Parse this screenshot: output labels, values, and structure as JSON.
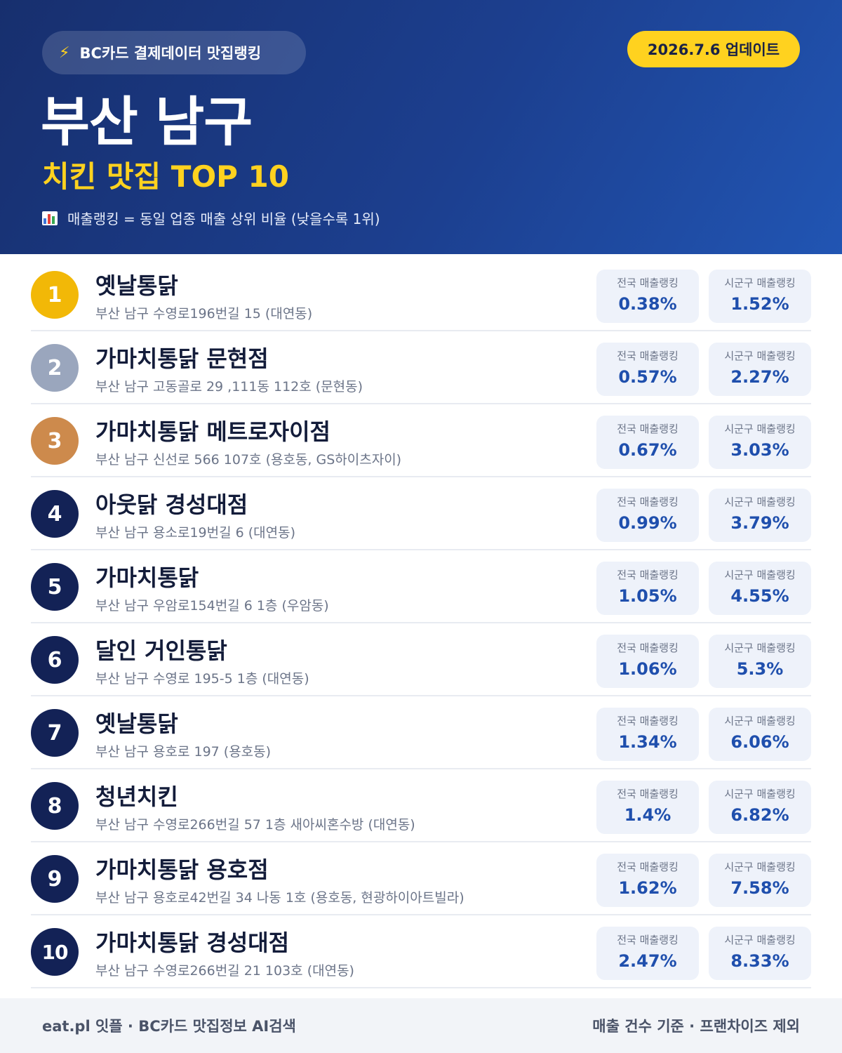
{
  "header": {
    "source_label": "BC카드 결제데이터 맛집랭킹",
    "source_icon": "lightning-icon",
    "update_label": "2026.7.6 업데이트",
    "title": "부산 남구",
    "subtitle": "치킨 맛집 TOP 10",
    "note": "매출랭킹 = 동일 업종 매출 상위 비율 (낮을수록 1위)",
    "note_icon": "bar-chart-icon"
  },
  "stat_labels": {
    "national": "전국 매출랭킹",
    "local": "시군구 매출랭킹"
  },
  "colors": {
    "gold": "#f2b807",
    "silver": "#9aa6bd",
    "bronze": "#cd8a4c",
    "navy": "#132256",
    "accent_yellow": "#ffd21f",
    "value_blue": "#1f4fad"
  },
  "restaurants": [
    {
      "rank": "1",
      "name": "옛날통닭",
      "address": "부산 남구 수영로196번길 15 (대연동)",
      "national": "0.38%",
      "local": "1.52%"
    },
    {
      "rank": "2",
      "name": "가마치통닭 문현점",
      "address": "부산 남구 고동골로 29 ,111동 112호 (문현동)",
      "national": "0.57%",
      "local": "2.27%"
    },
    {
      "rank": "3",
      "name": "가마치통닭 메트로자이점",
      "address": "부산 남구 신선로 566 107호 (용호동, GS하이츠자이)",
      "national": "0.67%",
      "local": "3.03%"
    },
    {
      "rank": "4",
      "name": "아웃닭 경성대점",
      "address": "부산 남구 용소로19번길 6 (대연동)",
      "national": "0.99%",
      "local": "3.79%"
    },
    {
      "rank": "5",
      "name": "가마치통닭",
      "address": "부산 남구 우암로154번길 6 1층 (우암동)",
      "national": "1.05%",
      "local": "4.55%"
    },
    {
      "rank": "6",
      "name": "달인 거인통닭",
      "address": "부산 남구 수영로 195-5 1층 (대연동)",
      "national": "1.06%",
      "local": "5.3%"
    },
    {
      "rank": "7",
      "name": "옛날통닭",
      "address": "부산 남구 용호로 197 (용호동)",
      "national": "1.34%",
      "local": "6.06%"
    },
    {
      "rank": "8",
      "name": "청년치킨",
      "address": "부산 남구 수영로266번길 57 1층 새아씨혼수방 (대연동)",
      "national": "1.4%",
      "local": "6.82%"
    },
    {
      "rank": "9",
      "name": "가마치통닭 용호점",
      "address": "부산 남구 용호로42번길 34 나동 1호 (용호동, 현광하이아트빌라)",
      "national": "1.62%",
      "local": "7.58%"
    },
    {
      "rank": "10",
      "name": "가마치통닭 경성대점",
      "address": "부산 남구 수영로266번길 21 103호 (대연동)",
      "national": "2.47%",
      "local": "8.33%"
    }
  ],
  "footer": {
    "left": "eat.pl 잇플 · BC카드 맛집정보 AI검색",
    "right": "매출 건수 기준 · 프랜차이즈 제외"
  }
}
